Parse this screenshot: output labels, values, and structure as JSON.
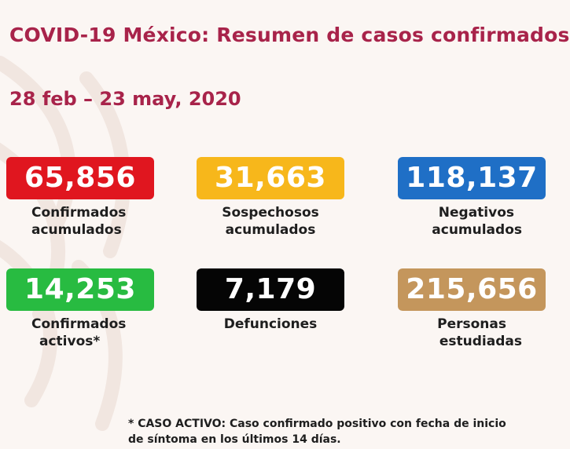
{
  "header": {
    "title": "COVID-19 México: Resumen de casos confirmados",
    "date_range": "28 feb – 23 may, 2020"
  },
  "stats": [
    {
      "value": "65,856",
      "label_line1": "Confirmados",
      "label_line2": "acumulados",
      "color": "#e0161f"
    },
    {
      "value": "31,663",
      "label_line1": "Sospechosos",
      "label_line2": "acumulados",
      "color": "#f7b71b"
    },
    {
      "value": "118,137",
      "label_line1": "Negativos",
      "label_line2": "acumulados",
      "color": "#1f6fc6"
    },
    {
      "value": "14,253",
      "label_line1": "Confirmados",
      "label_line2": "activos*",
      "color": "#28bb41"
    },
    {
      "value": "7,179",
      "label_line1": "Defunciones",
      "label_line2": "",
      "color": "#050505"
    },
    {
      "value": "215,656",
      "label_line1": "Personas",
      "label_line2": "estudiadas",
      "color": "#c4965c"
    }
  ],
  "footnote": {
    "line1": "* CASO ACTIVO: Caso confirmado positivo con fecha de inicio",
    "line2": "de síntoma en los últimos 14 días."
  }
}
